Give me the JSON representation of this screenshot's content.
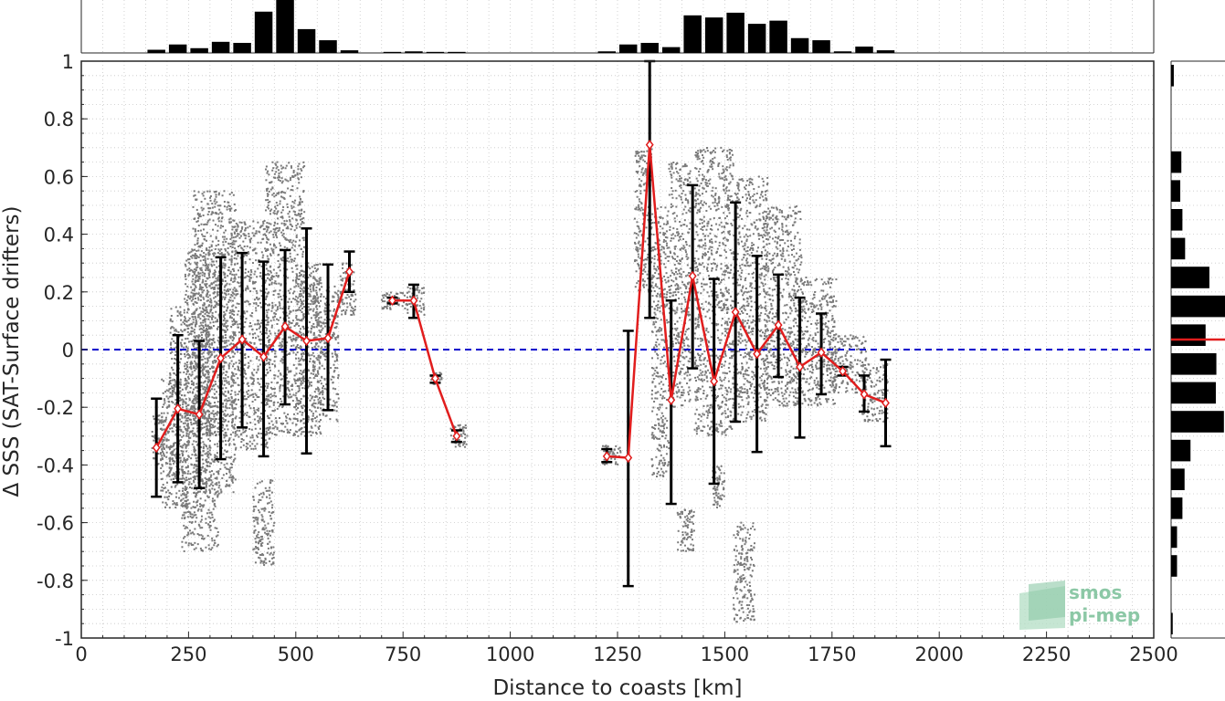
{
  "chart_data": {
    "type": "scatter",
    "xlabel": "Distance to coasts [km]",
    "ylabel": "Δ SSS (SAT-Surface drifters)",
    "xlim": [
      0,
      2500
    ],
    "ylim": [
      -1,
      1
    ],
    "x_ticks": [
      0,
      250,
      500,
      750,
      1000,
      1250,
      1500,
      1750,
      2000,
      2250,
      2500
    ],
    "y_ticks": [
      -1,
      -0.8,
      -0.6,
      -0.4,
      -0.2,
      0,
      0.2,
      0.4,
      0.6,
      0.8,
      1
    ],
    "y_tick_labels": [
      "-1",
      "-0.8",
      "-0.6",
      "-0.4",
      "-0.2",
      "0",
      "0.2",
      "0.4",
      "0.6",
      "0.8",
      "1"
    ],
    "grid": true,
    "zero_line": 0,
    "series": [
      {
        "name": "",
        "kind": "binned mean ± std",
        "color": "#e11d1d",
        "points": [
          {
            "x": 175,
            "y": -0.34,
            "lo": -0.51,
            "hi": -0.17
          },
          {
            "x": 225,
            "y": -0.205,
            "lo": -0.46,
            "hi": 0.05
          },
          {
            "x": 275,
            "y": -0.225,
            "lo": -0.48,
            "hi": 0.03
          },
          {
            "x": 325,
            "y": -0.03,
            "lo": -0.38,
            "hi": 0.32
          },
          {
            "x": 375,
            "y": 0.035,
            "lo": -0.27,
            "hi": 0.335
          },
          {
            "x": 425,
            "y": -0.025,
            "lo": -0.37,
            "hi": 0.305
          },
          {
            "x": 475,
            "y": 0.08,
            "lo": -0.19,
            "hi": 0.345
          },
          {
            "x": 525,
            "y": 0.03,
            "lo": -0.36,
            "hi": 0.42
          },
          {
            "x": 575,
            "y": 0.04,
            "lo": -0.21,
            "hi": 0.295
          },
          {
            "x": 625,
            "y": 0.27,
            "lo": 0.2,
            "hi": 0.34
          },
          {
            "x": 725,
            "y": 0.17,
            "lo": 0.16,
            "hi": 0.18
          },
          {
            "x": 775,
            "y": 0.17,
            "lo": 0.11,
            "hi": 0.225
          },
          {
            "x": 825,
            "y": -0.1,
            "lo": -0.115,
            "hi": -0.09
          },
          {
            "x": 875,
            "y": -0.3,
            "lo": -0.32,
            "hi": -0.28
          },
          {
            "x": 1225,
            "y": -0.37,
            "lo": -0.39,
            "hi": -0.345
          },
          {
            "x": 1275,
            "y": -0.375,
            "lo": -0.82,
            "hi": 0.065
          },
          {
            "x": 1325,
            "y": 0.71,
            "lo": 0.11,
            "hi": 1.0
          },
          {
            "x": 1375,
            "y": -0.175,
            "lo": -0.535,
            "hi": 0.17
          },
          {
            "x": 1425,
            "y": 0.255,
            "lo": -0.065,
            "hi": 0.57
          },
          {
            "x": 1475,
            "y": -0.11,
            "lo": -0.465,
            "hi": 0.245
          },
          {
            "x": 1525,
            "y": 0.13,
            "lo": -0.25,
            "hi": 0.51
          },
          {
            "x": 1575,
            "y": -0.015,
            "lo": -0.355,
            "hi": 0.325
          },
          {
            "x": 1625,
            "y": 0.085,
            "lo": -0.095,
            "hi": 0.26
          },
          {
            "x": 1675,
            "y": -0.06,
            "lo": -0.305,
            "hi": 0.18
          },
          {
            "x": 1725,
            "y": -0.01,
            "lo": -0.155,
            "hi": 0.125
          },
          {
            "x": 1775,
            "y": -0.075,
            "lo": -0.09,
            "hi": -0.06
          },
          {
            "x": 1825,
            "y": -0.155,
            "lo": -0.215,
            "hi": -0.09
          },
          {
            "x": 1875,
            "y": -0.185,
            "lo": -0.335,
            "hi": -0.035
          }
        ]
      }
    ],
    "scatter_clusters": [
      {
        "x0": 165,
        "x1": 200,
        "y0": -0.4,
        "y1": -0.22
      },
      {
        "x0": 185,
        "x1": 250,
        "y0": -0.55,
        "y1": -0.1
      },
      {
        "x0": 205,
        "x1": 300,
        "y0": -0.45,
        "y1": 0.15
      },
      {
        "x0": 235,
        "x1": 320,
        "y0": -0.7,
        "y1": -0.45
      },
      {
        "x0": 240,
        "x1": 340,
        "y0": -0.3,
        "y1": 0.35
      },
      {
        "x0": 260,
        "x1": 360,
        "y0": -0.5,
        "y1": 0.55
      },
      {
        "x0": 350,
        "x1": 440,
        "y0": -0.35,
        "y1": 0.45
      },
      {
        "x0": 400,
        "x1": 450,
        "y0": -0.75,
        "y1": -0.45
      },
      {
        "x0": 430,
        "x1": 520,
        "y0": -0.3,
        "y1": 0.65
      },
      {
        "x0": 500,
        "x1": 560,
        "y0": -0.3,
        "y1": 0.3
      },
      {
        "x0": 540,
        "x1": 600,
        "y0": -0.25,
        "y1": 0.25
      },
      {
        "x0": 600,
        "x1": 640,
        "y0": 0.12,
        "y1": 0.3
      },
      {
        "x0": 700,
        "x1": 760,
        "y0": 0.14,
        "y1": 0.2
      },
      {
        "x0": 760,
        "x1": 800,
        "y0": 0.12,
        "y1": 0.22
      },
      {
        "x0": 815,
        "x1": 840,
        "y0": -0.12,
        "y1": -0.08
      },
      {
        "x0": 860,
        "x1": 900,
        "y0": -0.34,
        "y1": -0.26
      },
      {
        "x0": 1215,
        "x1": 1260,
        "y0": -0.4,
        "y1": -0.33
      },
      {
        "x0": 1290,
        "x1": 1330,
        "y0": 0.2,
        "y1": 0.7
      },
      {
        "x0": 1330,
        "x1": 1370,
        "y0": -0.45,
        "y1": 0.5
      },
      {
        "x0": 1370,
        "x1": 1420,
        "y0": -0.2,
        "y1": 0.65
      },
      {
        "x0": 1390,
        "x1": 1430,
        "y0": -0.7,
        "y1": -0.55
      },
      {
        "x0": 1430,
        "x1": 1520,
        "y0": -0.3,
        "y1": 0.7
      },
      {
        "x0": 1470,
        "x1": 1500,
        "y0": -0.55,
        "y1": -0.4
      },
      {
        "x0": 1520,
        "x1": 1570,
        "y0": -0.95,
        "y1": -0.6
      },
      {
        "x0": 1520,
        "x1": 1600,
        "y0": -0.25,
        "y1": 0.6
      },
      {
        "x0": 1590,
        "x1": 1680,
        "y0": -0.2,
        "y1": 0.5
      },
      {
        "x0": 1660,
        "x1": 1760,
        "y0": -0.2,
        "y1": 0.25
      },
      {
        "x0": 1740,
        "x1": 1830,
        "y0": -0.15,
        "y1": 0.05
      },
      {
        "x0": 1820,
        "x1": 1880,
        "y0": -0.25,
        "y1": -0.05
      }
    ],
    "top_histogram": {
      "bin_width": 50,
      "bins": [
        {
          "x": 175,
          "h": 0.06
        },
        {
          "x": 225,
          "h": 0.16
        },
        {
          "x": 275,
          "h": 0.09
        },
        {
          "x": 325,
          "h": 0.21
        },
        {
          "x": 375,
          "h": 0.19
        },
        {
          "x": 425,
          "h": 0.78
        },
        {
          "x": 475,
          "h": 1.0
        },
        {
          "x": 525,
          "h": 0.45
        },
        {
          "x": 575,
          "h": 0.24
        },
        {
          "x": 625,
          "h": 0.05
        },
        {
          "x": 725,
          "h": 0.02
        },
        {
          "x": 775,
          "h": 0.03
        },
        {
          "x": 825,
          "h": 0.02
        },
        {
          "x": 875,
          "h": 0.02
        },
        {
          "x": 1225,
          "h": 0.03
        },
        {
          "x": 1275,
          "h": 0.16
        },
        {
          "x": 1325,
          "h": 0.19
        },
        {
          "x": 1375,
          "h": 0.11
        },
        {
          "x": 1425,
          "h": 0.71
        },
        {
          "x": 1475,
          "h": 0.67
        },
        {
          "x": 1525,
          "h": 0.76
        },
        {
          "x": 1575,
          "h": 0.55
        },
        {
          "x": 1625,
          "h": 0.61
        },
        {
          "x": 1675,
          "h": 0.28
        },
        {
          "x": 1725,
          "h": 0.24
        },
        {
          "x": 1775,
          "h": 0.03
        },
        {
          "x": 1825,
          "h": 0.12
        },
        {
          "x": 1875,
          "h": 0.05
        }
      ]
    },
    "right_histogram": {
      "bin_height": 0.1,
      "mean_line": 0.035,
      "bins": [
        {
          "y": 0.95,
          "w": 0.05
        },
        {
          "y": 0.85,
          "w": 0.0
        },
        {
          "y": 0.75,
          "w": 0.0
        },
        {
          "y": 0.65,
          "w": 0.19
        },
        {
          "y": 0.55,
          "w": 0.17
        },
        {
          "y": 0.45,
          "w": 0.21
        },
        {
          "y": 0.35,
          "w": 0.26
        },
        {
          "y": 0.25,
          "w": 0.71
        },
        {
          "y": 0.15,
          "w": 1.0
        },
        {
          "y": 0.05,
          "w": 0.64
        },
        {
          "y": -0.05,
          "w": 0.84
        },
        {
          "y": -0.15,
          "w": 0.83
        },
        {
          "y": -0.25,
          "w": 0.98
        },
        {
          "y": -0.35,
          "w": 0.36
        },
        {
          "y": -0.45,
          "w": 0.25
        },
        {
          "y": -0.55,
          "w": 0.21
        },
        {
          "y": -0.65,
          "w": 0.11
        },
        {
          "y": -0.75,
          "w": 0.11
        },
        {
          "y": -0.85,
          "w": 0.0
        },
        {
          "y": -0.95,
          "w": 0.03
        }
      ]
    },
    "colors": {
      "mean_line": "#e11d1d",
      "error_bar": "#000000",
      "scatter": "#7a7a7a",
      "zero_line": "#0000cc",
      "histogram": "#000000",
      "logo": "#8cc8a6"
    },
    "logo": {
      "line1": "smos",
      "line2": "pi-mep"
    }
  }
}
